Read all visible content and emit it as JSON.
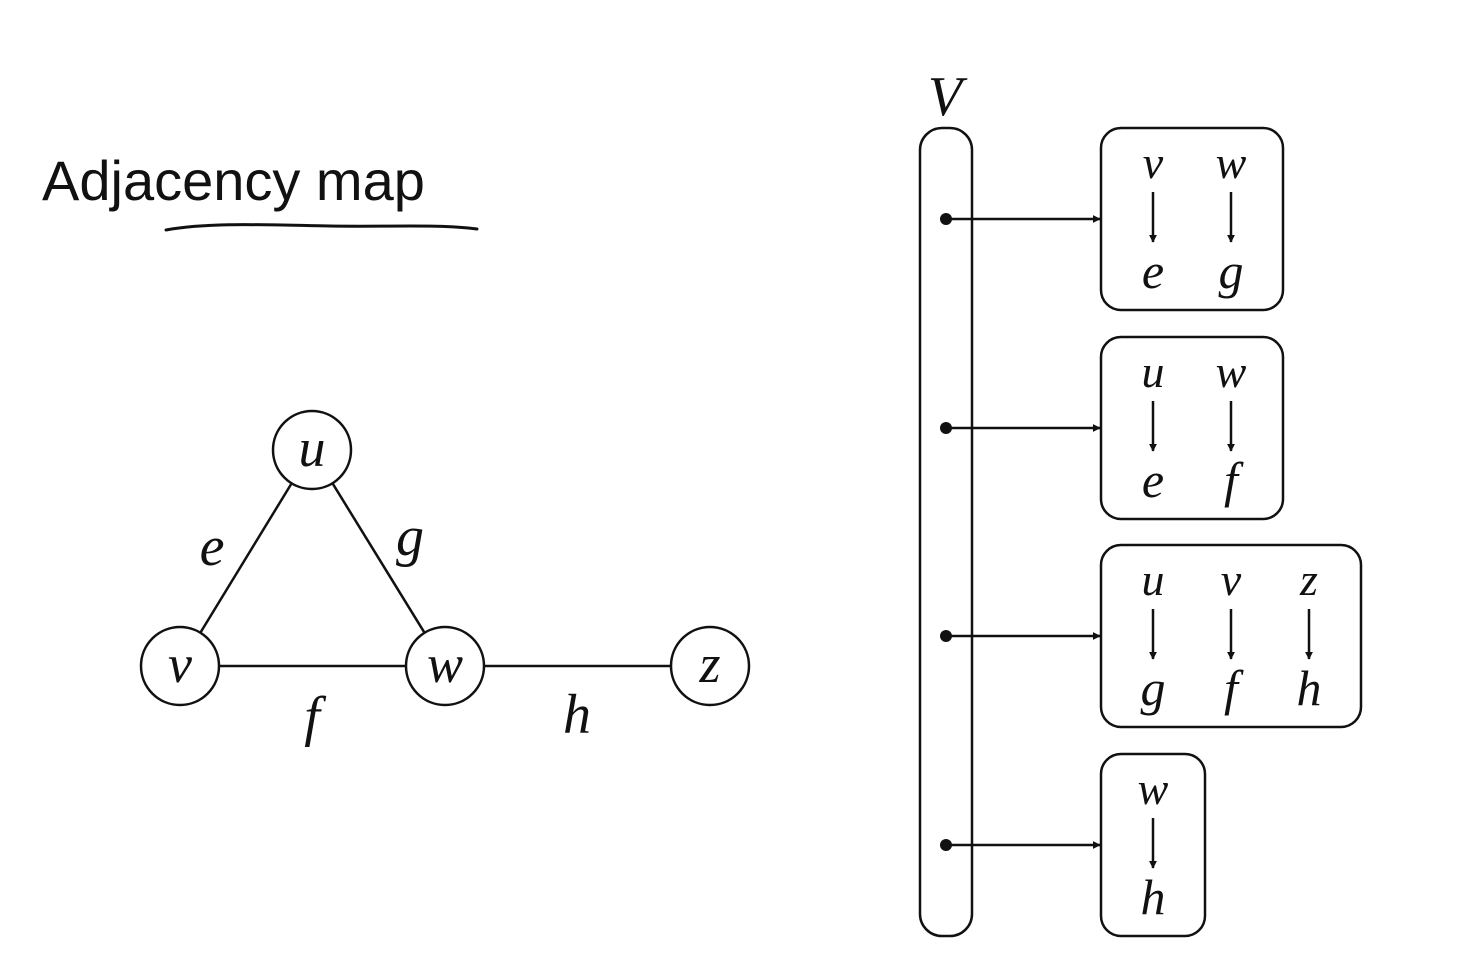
{
  "title": "Adjacency map",
  "graph": {
    "vertices": [
      "u",
      "v",
      "w",
      "z"
    ],
    "edges": [
      {
        "label": "e",
        "from": "u",
        "to": "v"
      },
      {
        "label": "g",
        "from": "u",
        "to": "w"
      },
      {
        "label": "f",
        "from": "v",
        "to": "w"
      },
      {
        "label": "h",
        "from": "w",
        "to": "z"
      }
    ]
  },
  "map": {
    "label": "V",
    "entries": [
      {
        "pairs": [
          {
            "key": "v",
            "value": "e"
          },
          {
            "key": "w",
            "value": "g"
          }
        ]
      },
      {
        "pairs": [
          {
            "key": "u",
            "value": "e"
          },
          {
            "key": "w",
            "value": "f"
          }
        ]
      },
      {
        "pairs": [
          {
            "key": "u",
            "value": "g"
          },
          {
            "key": "v",
            "value": "f"
          },
          {
            "key": "z",
            "value": "h"
          }
        ]
      },
      {
        "pairs": [
          {
            "key": "w",
            "value": "h"
          }
        ]
      }
    ]
  }
}
